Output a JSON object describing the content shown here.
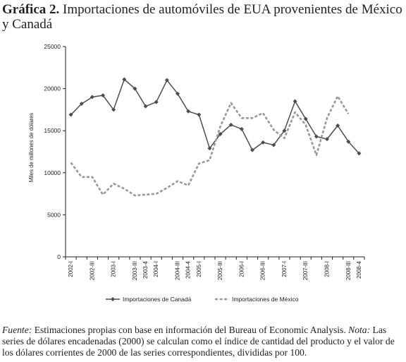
{
  "title": {
    "prefix": "Gráfica 2.",
    "text": "Importaciones de automóviles de EUA provenientes de México y Canadá"
  },
  "footer": {
    "source_label": "Fuente:",
    "source_text": "Estimaciones propias con base en información del Bureau of Economic Analysis.",
    "note_label": "Nota:",
    "note_text": "Las series de dólares encadenadas (2000) se calculan como el índice de cantidad del producto y el valor de los dólares corrientes de 2000 de las series correspondientes, divididas por 100."
  },
  "chart_data": {
    "type": "line",
    "ylabel": "Miles de millones de dólares",
    "ylim": [
      0,
      25000
    ],
    "yticks": [
      0,
      5000,
      10000,
      15000,
      20000,
      25000
    ],
    "x_tick_labels": [
      "2002-I",
      "",
      "2002-III",
      "",
      "2003-I",
      "",
      "2003-III",
      "",
      "2004-I",
      "",
      "2004-III",
      "",
      "2005-I",
      "",
      "2005-III",
      "",
      "2006-I",
      "",
      "2006-III",
      "",
      "2007-I",
      "",
      "2007-III",
      "",
      "2008-I",
      "",
      "2008-III"
    ],
    "x_tick_labels_printed": [
      "2002-I",
      "2002-III",
      "2003-I",
      "2003-III",
      "2004-I",
      "2004-III",
      "2005-I",
      "2005-III",
      "2006-I",
      "2006-III",
      "2007-I",
      "2007-III",
      "2008-I",
      "2008-III"
    ],
    "x_label_overrides": {
      "7": "2003-4",
      "11": "2004-4",
      "27": "2008-4"
    },
    "legend_position": "bottom",
    "grid": false,
    "series": [
      {
        "name": "Importaciones de Canadá",
        "color": "#4d4d4d",
        "style": "solid-diamond",
        "values": [
          16900,
          18200,
          19000,
          19200,
          17500,
          21100,
          20000,
          17900,
          18400,
          21000,
          19400,
          17300,
          16900,
          12900,
          14600,
          15700,
          15200,
          12700,
          13600,
          13300,
          15000,
          18500,
          16400,
          14300,
          14000,
          15600,
          13700,
          12300
        ]
      },
      {
        "name": "Importaciones de México",
        "color": "#999999",
        "style": "dashed",
        "values": [
          11200,
          9500,
          9500,
          7400,
          8700,
          8100,
          7300,
          7400,
          7500,
          8200,
          9000,
          8500,
          11100,
          11500,
          15500,
          18300,
          16500,
          16500,
          17100,
          15100,
          14100,
          17200,
          15700,
          12100,
          16500,
          19100,
          17000
        ]
      }
    ]
  }
}
